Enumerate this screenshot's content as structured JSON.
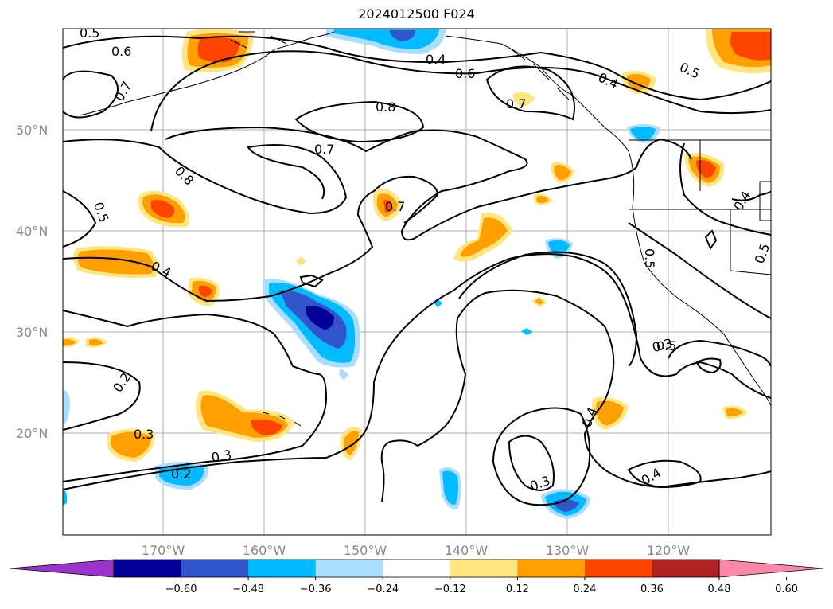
{
  "title": "2024012500 F024",
  "lat_labels": [
    "50°N",
    "40°N",
    "30°N",
    "20°N"
  ],
  "lon_labels": [
    "170°W",
    "160°W",
    "150°W",
    "140°W",
    "130°W",
    "120°W"
  ],
  "colorbar": {
    "tick_labels": [
      "−0.60",
      "−0.48",
      "−0.36",
      "−0.24",
      "−0.12",
      "0.12",
      "0.24",
      "0.36",
      "0.48",
      "0.60"
    ],
    "colors": [
      "#9933cc",
      "#000099",
      "#3355cc",
      "#00bbff",
      "#aaddff",
      "#ffffff",
      "#ffe680",
      "#ffa000",
      "#ff4400",
      "#b22222",
      "#ff88aa"
    ]
  },
  "contour_labels": [
    "0.5",
    "0.6",
    "0.7",
    "0.4",
    "0.6",
    "0.8",
    "0.7",
    "0.4",
    "0.5",
    "0.7",
    "0.8",
    "0.7",
    "0.5",
    "0.4",
    "0.4",
    "0.5",
    "0.5",
    "0.4",
    "0.3",
    "0.2",
    "0.3",
    "0.3",
    "0.2",
    "0.3",
    "0.4",
    "0.5",
    "0.3"
  ]
}
